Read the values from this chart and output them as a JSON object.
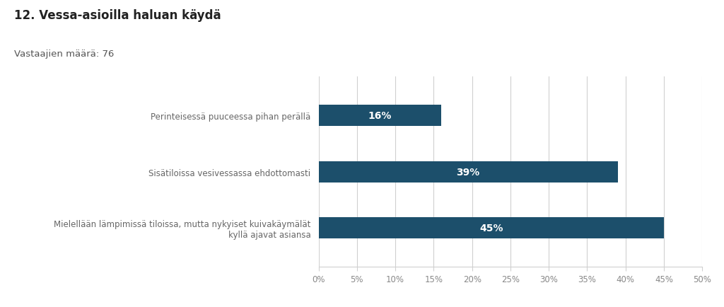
{
  "title": "12. Vessa-asioilla haluan käydä",
  "subtitle": "Vastaajien määrä: 76",
  "categories": [
    "Mielellään lämpimissä tiloissa, mutta nykyiset kuivakäymälät\nkyllä ajavat asiansa",
    "Sisätiloissa vesivessassa ehdottomasti",
    "Perinteisessä puuceessa pihan perällä"
  ],
  "values": [
    45,
    39,
    16
  ],
  "bar_color": "#1c4f6b",
  "label_color": "#ffffff",
  "background_color": "#ffffff",
  "xlim": [
    0,
    50
  ],
  "xtick_values": [
    0,
    5,
    10,
    15,
    20,
    25,
    30,
    35,
    40,
    45,
    50
  ],
  "title_fontsize": 12,
  "subtitle_fontsize": 9.5,
  "label_fontsize": 10,
  "tick_fontsize": 8.5,
  "category_fontsize": 8.5,
  "grid_color": "#d0d0d0",
  "bar_height": 0.38
}
